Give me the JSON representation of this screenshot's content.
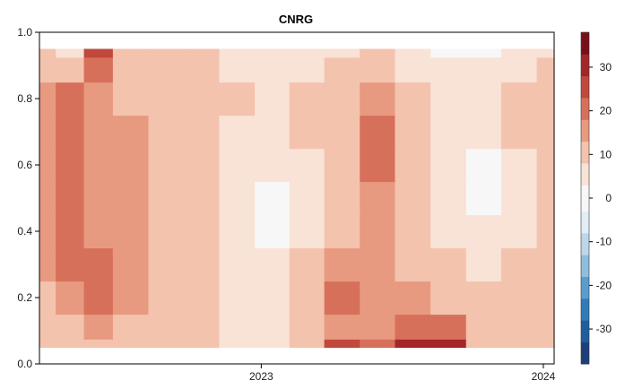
{
  "chart_data": {
    "type": "heatmap",
    "title": "CNRG",
    "xlabel": "",
    "ylabel": "",
    "x_axis": {
      "type": "date",
      "range": [
        "2022-03-20",
        "2024-01-15"
      ],
      "ticks": [
        {
          "value": "2023-01-01",
          "label": "2023"
        },
        {
          "value": "2024-01-01",
          "label": "2024"
        }
      ]
    },
    "y_axis": {
      "range": [
        0.0,
        1.0
      ],
      "ticks": [
        {
          "value": 0.0,
          "label": "0.0"
        },
        {
          "value": 0.2,
          "label": "0.2"
        },
        {
          "value": 0.4,
          "label": "0.4"
        },
        {
          "value": 0.6,
          "label": "0.6"
        },
        {
          "value": 0.8,
          "label": "0.8"
        },
        {
          "value": 1.0,
          "label": "1.0"
        }
      ]
    },
    "data_extent": {
      "y": [
        0.05,
        0.95
      ]
    },
    "colorbar": {
      "range": [
        -38,
        38
      ],
      "ticks": [
        {
          "value": 30,
          "label": "30"
        },
        {
          "value": 20,
          "label": "20"
        },
        {
          "value": 10,
          "label": "10"
        },
        {
          "value": 0,
          "label": "0"
        },
        {
          "value": -10,
          "label": "-10"
        },
        {
          "value": -20,
          "label": "-20"
        },
        {
          "value": -30,
          "label": "-30"
        }
      ],
      "levels": [
        -38,
        -33,
        -28,
        -23,
        -18,
        -13,
        -8,
        -3,
        3,
        8,
        13,
        18,
        23,
        28,
        33,
        38
      ],
      "colors": [
        "#1d3f7a",
        "#1f5e9c",
        "#2f7cb8",
        "#5a9ccc",
        "#8ebedd",
        "#bdd7ea",
        "#e2eef5",
        "#f7f7f7",
        "#f9e2d6",
        "#f3c3ad",
        "#e89a80",
        "#d7705a",
        "#c0483c",
        "#a3262a",
        "#7a0f1c"
      ]
    },
    "values": {
      "y": [
        0.05,
        0.1,
        0.2,
        0.3,
        0.4,
        0.5,
        0.6,
        0.7,
        0.8,
        0.9,
        0.95
      ],
      "x": [
        "2022-03-20",
        "2022-05-01",
        "2022-06-01",
        "2022-07-15",
        "2022-09-01",
        "2022-10-15",
        "2022-12-01",
        "2023-01-15",
        "2023-03-01",
        "2023-04-15",
        "2023-06-01",
        "2023-07-15",
        "2023-09-01",
        "2023-10-15",
        "2023-12-01",
        "2024-01-15"
      ],
      "z": [
        [
          8,
          10,
          12,
          9,
          10,
          8,
          5,
          6,
          12,
          25,
          18,
          30,
          28,
          12,
          8,
          10
        ],
        [
          10,
          12,
          14,
          12,
          11,
          9,
          5,
          4,
          10,
          16,
          14,
          20,
          18,
          10,
          8,
          10
        ],
        [
          12,
          16,
          18,
          14,
          12,
          10,
          5,
          4,
          9,
          22,
          14,
          14,
          12,
          9,
          8,
          10
        ],
        [
          13,
          18,
          18,
          14,
          12,
          10,
          6,
          4,
          8,
          14,
          14,
          10,
          8,
          6,
          8,
          10
        ],
        [
          13,
          18,
          16,
          14,
          12,
          10,
          6,
          2,
          6,
          12,
          14,
          8,
          4,
          3,
          7,
          10
        ],
        [
          13,
          20,
          16,
          14,
          12,
          9,
          6,
          2,
          6,
          12,
          16,
          8,
          4,
          2,
          7,
          10
        ],
        [
          14,
          22,
          16,
          14,
          12,
          9,
          6,
          3,
          7,
          12,
          18,
          9,
          4,
          2,
          7,
          10
        ],
        [
          15,
          22,
          17,
          13,
          12,
          9,
          7,
          4,
          8,
          12,
          18,
          10,
          6,
          4,
          8,
          11
        ],
        [
          14,
          18,
          16,
          12,
          11,
          9,
          8,
          5,
          8,
          11,
          14,
          10,
          7,
          6,
          8,
          11
        ],
        [
          9,
          8,
          22,
          10,
          12,
          9,
          5,
          4,
          6,
          8,
          10,
          6,
          4,
          4,
          6,
          8
        ],
        [
          8,
          6,
          24,
          8,
          10,
          8,
          4,
          3,
          5,
          6,
          8,
          4,
          2,
          2,
          5,
          7
        ]
      ]
    }
  }
}
